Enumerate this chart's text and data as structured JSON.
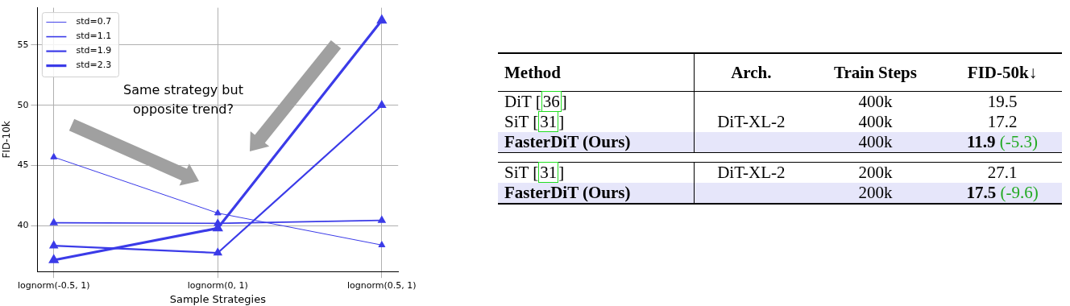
{
  "chart_data": [
    {
      "type": "line",
      "xlabel": "Sample Strategies",
      "ylabel": "FID-10k",
      "categories": [
        "lognorm(-0.5, 1)",
        "lognorm(0, 1)",
        "lognorm(0.5, 1)"
      ],
      "series": [
        {
          "name": "std=0.7",
          "color": "#3b3be8",
          "values": [
            45.7,
            41.05,
            38.4
          ]
        },
        {
          "name": "std=1.1",
          "color": "#3b3be8",
          "values": [
            40.25,
            40.2,
            40.45
          ]
        },
        {
          "name": "std=1.9",
          "color": "#3b3be8",
          "values": [
            38.35,
            37.75,
            50.0
          ]
        },
        {
          "name": "std=2.3",
          "color": "#3b3be8",
          "values": [
            37.15,
            39.8,
            57.05
          ]
        }
      ],
      "ylim": [
        36.2,
        58.1
      ],
      "yticks": [
        40,
        45,
        50,
        55
      ],
      "grid": true,
      "legend": "top left",
      "marker": "triangle",
      "line_style": "solid",
      "annotations": [
        "Same strategy but opposite trend?"
      ]
    },
    {
      "type": "other",
      "categories": [
        "Method",
        "Arch.",
        "Train Steps",
        "FID-50k↓"
      ],
      "cell_labels": [
        [
          "DiT [36]",
          null,
          "400k",
          "19.5"
        ],
        [
          "SiT [31]",
          "DiT-XL-2",
          "400k",
          "17.2"
        ],
        [
          "FasterDiT (Ours)",
          null,
          "400k",
          "11.9 (-5.3)"
        ],
        [
          null,
          null,
          null,
          null
        ],
        [
          "SiT [31]",
          "DiT-XL-2",
          "200k",
          "27.1"
        ],
        [
          "FasterDiT (Ours)",
          null,
          "200k",
          "17.5 (-9.6)"
        ]
      ]
    }
  ]
}
